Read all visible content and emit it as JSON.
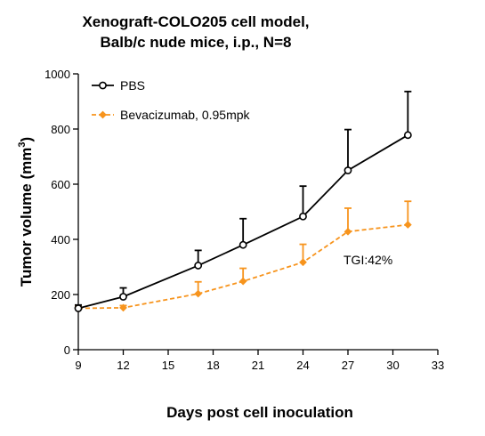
{
  "chart_data": {
    "type": "line",
    "title": [
      "Xenograft-COLO205 cell model,",
      "Balb/c nude mice, i.p., N=8"
    ],
    "xlabel": "Days post cell inoculation",
    "ylabel": "Tumor volume (mm³)",
    "xlim": [
      9,
      33
    ],
    "ylim": [
      0,
      1000
    ],
    "xticks": [
      9,
      12,
      15,
      18,
      21,
      24,
      27,
      30,
      33
    ],
    "yticks": [
      0,
      200,
      400,
      600,
      800,
      1000
    ],
    "grid": false,
    "legend_position": "top-left",
    "annotation": "TGI:42%",
    "series": [
      {
        "name": "PBS",
        "color": "#000000",
        "marker": "open-circle",
        "line_style": "solid",
        "x": [
          9,
          12,
          17,
          20,
          24,
          27,
          31
        ],
        "y": [
          150,
          192,
          305,
          380,
          483,
          650,
          778
        ],
        "error": [
          12,
          32,
          55,
          95,
          110,
          148,
          158
        ]
      },
      {
        "name": "Bevacizumab, 0.95mpk",
        "color": "#f7941d",
        "marker": "diamond",
        "line_style": "dashed",
        "x": [
          9,
          12,
          17,
          20,
          24,
          27,
          31
        ],
        "y": [
          150,
          152,
          203,
          248,
          317,
          428,
          453
        ],
        "error": [
          8,
          8,
          43,
          47,
          65,
          85,
          85
        ]
      }
    ]
  }
}
